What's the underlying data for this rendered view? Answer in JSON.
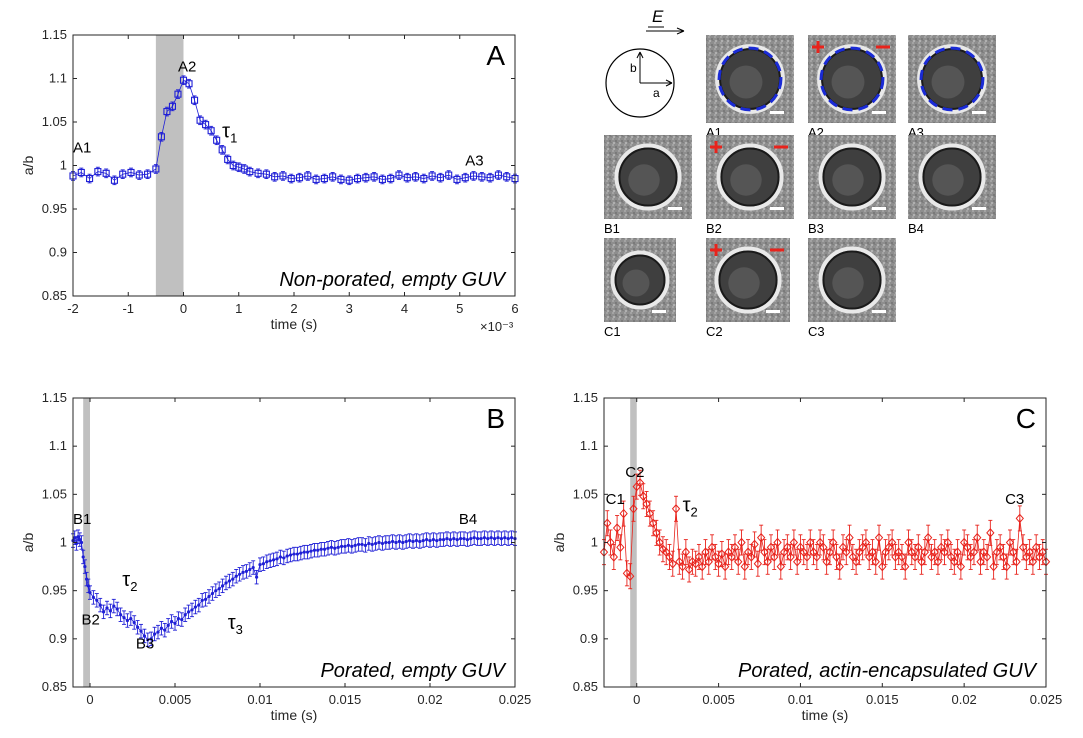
{
  "chart_data": [
    {
      "panel": "A",
      "type": "scatter",
      "caption": "Non-porated, empty GUV",
      "xlabel": "time (s)",
      "x_exponent_label": "×10⁻³",
      "ylabel": "a/b",
      "xlim": [
        -2,
        6
      ],
      "ylim": [
        0.85,
        1.15
      ],
      "xticks": [
        -2,
        -1,
        0,
        1,
        2,
        3,
        4,
        5,
        6
      ],
      "xtick_labels": [
        "-2",
        "-1",
        "0",
        "1",
        "2",
        "3",
        "4",
        "5",
        "6"
      ],
      "yticks": [
        0.85,
        0.9,
        0.95,
        1,
        1.05,
        1.1,
        1.15
      ],
      "ytick_labels": [
        "0.85",
        "0.9",
        "0.95",
        "1",
        "1.05",
        "1.1",
        "1.15"
      ],
      "shaded_region": [
        -0.5,
        0
      ],
      "color": "#1f1fd6",
      "marker": "square",
      "error": 0.005,
      "x": [
        -2.0,
        -1.85,
        -1.7,
        -1.55,
        -1.4,
        -1.25,
        -1.1,
        -0.95,
        -0.8,
        -0.65,
        -0.5,
        -0.4,
        -0.3,
        -0.2,
        -0.1,
        0.0,
        0.1,
        0.2,
        0.3,
        0.4,
        0.5,
        0.6,
        0.7,
        0.8,
        0.9,
        1.0,
        1.1,
        1.2,
        1.35,
        1.5,
        1.65,
        1.8,
        1.95,
        2.1,
        2.25,
        2.4,
        2.55,
        2.7,
        2.85,
        3.0,
        3.15,
        3.3,
        3.45,
        3.6,
        3.75,
        3.9,
        4.05,
        4.2,
        4.35,
        4.5,
        4.65,
        4.8,
        4.95,
        5.1,
        5.25,
        5.4,
        5.55,
        5.7,
        5.85,
        6.0
      ],
      "y": [
        0.988,
        0.992,
        0.985,
        0.993,
        0.991,
        0.983,
        0.99,
        0.992,
        0.989,
        0.99,
        0.996,
        1.033,
        1.062,
        1.068,
        1.082,
        1.098,
        1.094,
        1.075,
        1.052,
        1.047,
        1.04,
        1.029,
        1.018,
        1.007,
        1.0,
        0.998,
        0.996,
        0.993,
        0.991,
        0.99,
        0.987,
        0.988,
        0.985,
        0.986,
        0.988,
        0.984,
        0.985,
        0.987,
        0.984,
        0.983,
        0.985,
        0.986,
        0.987,
        0.984,
        0.985,
        0.989,
        0.986,
        0.987,
        0.985,
        0.988,
        0.986,
        0.989,
        0.984,
        0.986,
        0.988,
        0.987,
        0.986,
        0.989,
        0.987,
        0.985
      ],
      "annotations": [
        {
          "text": "A1",
          "x": -2.0,
          "y": 1.015
        },
        {
          "text": "A2",
          "x": -0.1,
          "y": 1.108
        },
        {
          "text": "A3",
          "x": 5.1,
          "y": 1.0
        }
      ],
      "tau_annotations": [
        {
          "symbol": "τ",
          "subscript": "1",
          "x": 0.7,
          "y": 1.032
        }
      ]
    },
    {
      "panel": "B",
      "type": "scatter",
      "caption": "Porated, empty GUV",
      "xlabel": "time (s)",
      "ylabel": "a/b",
      "xlim": [
        -0.001,
        0.025
      ],
      "ylim": [
        0.85,
        1.15
      ],
      "xticks": [
        0,
        0.005,
        0.01,
        0.015,
        0.02,
        0.025
      ],
      "xtick_labels": [
        "0",
        "0.005",
        "0.01",
        "0.015",
        "0.02",
        "0.025"
      ],
      "yticks": [
        0.85,
        0.9,
        0.95,
        1,
        1.05,
        1.1,
        1.15
      ],
      "ytick_labels": [
        "0.85",
        "0.9",
        "0.95",
        "1",
        "1.05",
        "1.1",
        "1.15"
      ],
      "shaded_region": [
        -0.0004,
        0
      ],
      "color": "#1f1fd6",
      "marker": "dot",
      "error": 0.007,
      "x": [
        -0.001,
        -0.0009,
        -0.0008,
        -0.0007,
        -0.0006,
        -0.0005,
        -0.0004,
        -0.0003,
        -0.0002,
        -0.0001,
        0.0,
        0.0002,
        0.0004,
        0.0006,
        0.0008,
        0.001,
        0.0012,
        0.0014,
        0.0016,
        0.0018,
        0.002,
        0.0022,
        0.0024,
        0.0026,
        0.0028,
        0.003,
        0.0032,
        0.0034,
        0.0036,
        0.0038,
        0.004,
        0.0042,
        0.0044,
        0.0046,
        0.0048,
        0.005,
        0.0052,
        0.0054,
        0.0056,
        0.0058,
        0.006,
        0.0062,
        0.0064,
        0.0066,
        0.0068,
        0.007,
        0.0072,
        0.0074,
        0.0076,
        0.0078,
        0.008,
        0.0082,
        0.0084,
        0.0086,
        0.0088,
        0.009,
        0.0092,
        0.0094,
        0.0096,
        0.0098,
        0.01,
        0.0102,
        0.0104,
        0.0106,
        0.0108,
        0.011,
        0.0112,
        0.0114,
        0.0116,
        0.0118,
        0.012,
        0.0122,
        0.0124,
        0.0126,
        0.0128,
        0.013,
        0.0132,
        0.0134,
        0.0136,
        0.0138,
        0.014,
        0.0142,
        0.0144,
        0.0146,
        0.0148,
        0.015,
        0.0152,
        0.0154,
        0.0156,
        0.0158,
        0.016,
        0.0162,
        0.0164,
        0.0166,
        0.0168,
        0.017,
        0.0172,
        0.0174,
        0.0176,
        0.0178,
        0.018,
        0.0182,
        0.0184,
        0.0186,
        0.0188,
        0.019,
        0.0192,
        0.0194,
        0.0196,
        0.0198,
        0.02,
        0.0202,
        0.0204,
        0.0206,
        0.0208,
        0.021,
        0.0212,
        0.0214,
        0.0216,
        0.0218,
        0.022,
        0.0222,
        0.0224,
        0.0226,
        0.0228,
        0.023,
        0.0232,
        0.0234,
        0.0236,
        0.0238,
        0.024,
        0.0242,
        0.0244,
        0.0246,
        0.0248,
        0.025
      ],
      "y": [
        1.002,
        1.005,
        0.999,
        1.006,
        1.003,
        1.0,
        0.985,
        0.975,
        0.962,
        0.955,
        0.948,
        0.943,
        0.94,
        0.935,
        0.928,
        0.932,
        0.929,
        0.934,
        0.931,
        0.925,
        0.922,
        0.919,
        0.921,
        0.917,
        0.912,
        0.908,
        0.903,
        0.899,
        0.9,
        0.905,
        0.907,
        0.911,
        0.909,
        0.914,
        0.918,
        0.916,
        0.921,
        0.92,
        0.925,
        0.928,
        0.93,
        0.933,
        0.935,
        0.94,
        0.941,
        0.944,
        0.947,
        0.95,
        0.952,
        0.955,
        0.958,
        0.96,
        0.962,
        0.965,
        0.967,
        0.969,
        0.97,
        0.972,
        0.974,
        0.964,
        0.977,
        0.978,
        0.98,
        0.981,
        0.982,
        0.983,
        0.985,
        0.984,
        0.986,
        0.987,
        0.988,
        0.988,
        0.989,
        0.99,
        0.99,
        0.991,
        0.992,
        0.992,
        0.993,
        0.993,
        0.994,
        0.995,
        0.994,
        0.995,
        0.996,
        0.996,
        0.997,
        0.996,
        0.997,
        0.998,
        0.998,
        0.997,
        0.999,
        0.998,
        0.999,
        1.0,
        0.999,
        1.0,
        1.0,
        1.001,
        1.0,
        1.001,
        1.0,
        1.001,
        1.002,
        1.001,
        1.002,
        1.001,
        1.002,
        1.003,
        1.002,
        1.003,
        1.002,
        1.003,
        1.003,
        1.004,
        1.003,
        1.004,
        1.003,
        1.004,
        1.004,
        1.003,
        1.004,
        1.005,
        1.004,
        1.004,
        1.005,
        1.004,
        1.005,
        1.004,
        1.005,
        1.004,
        1.005,
        1.004,
        1.005,
        1.004
      ],
      "annotations": [
        {
          "text": "B1",
          "x": -0.001,
          "y": 1.019
        },
        {
          "text": "B2",
          "x": -0.0005,
          "y": 0.915
        },
        {
          "text": "B3",
          "x": 0.0027,
          "y": 0.89
        },
        {
          "text": "B4",
          "x": 0.0217,
          "y": 1.019
        }
      ],
      "tau_annotations": [
        {
          "symbol": "τ",
          "subscript": "2",
          "x": 0.0019,
          "y": 0.955
        },
        {
          "symbol": "τ",
          "subscript": "3",
          "x": 0.0081,
          "y": 0.91
        }
      ]
    },
    {
      "panel": "C",
      "type": "scatter",
      "caption": "Porated, actin-encapsulated GUV",
      "xlabel": "time (s)",
      "ylabel": "a/b",
      "xlim": [
        -0.002,
        0.025
      ],
      "ylim": [
        0.85,
        1.15
      ],
      "xticks": [
        0,
        0.005,
        0.01,
        0.015,
        0.02,
        0.025
      ],
      "xtick_labels": [
        "0",
        "0.005",
        "0.01",
        "0.015",
        "0.02",
        "0.025"
      ],
      "yticks": [
        0.85,
        0.9,
        0.95,
        1,
        1.05,
        1.1,
        1.15
      ],
      "ytick_labels": [
        "0.85",
        "0.9",
        "0.95",
        "1",
        "1.05",
        "1.1",
        "1.15"
      ],
      "shaded_region": [
        -0.0004,
        0
      ],
      "color": "#e8231c",
      "marker": "diamond",
      "error": 0.013,
      "x": [
        -0.002,
        -0.0018,
        -0.0016,
        -0.0014,
        -0.0012,
        -0.001,
        -0.0008,
        -0.0006,
        -0.0004,
        -0.0002,
        0.0,
        0.0002,
        0.0004,
        0.0006,
        0.0008,
        0.001,
        0.0012,
        0.0014,
        0.0016,
        0.0018,
        0.002,
        0.0022,
        0.0024,
        0.0026,
        0.0028,
        0.003,
        0.0032,
        0.0034,
        0.0036,
        0.0038,
        0.004,
        0.0042,
        0.0044,
        0.0046,
        0.0048,
        0.005,
        0.0052,
        0.0054,
        0.0056,
        0.0058,
        0.006,
        0.0062,
        0.0064,
        0.0066,
        0.0068,
        0.007,
        0.0072,
        0.0074,
        0.0076,
        0.0078,
        0.008,
        0.0082,
        0.0084,
        0.0086,
        0.0088,
        0.009,
        0.0092,
        0.0094,
        0.0096,
        0.0098,
        0.01,
        0.0102,
        0.0104,
        0.0106,
        0.0108,
        0.011,
        0.0112,
        0.0114,
        0.0116,
        0.0118,
        0.012,
        0.0122,
        0.0124,
        0.0126,
        0.0128,
        0.013,
        0.0132,
        0.0134,
        0.0136,
        0.0138,
        0.014,
        0.0142,
        0.0144,
        0.0146,
        0.0148,
        0.015,
        0.0152,
        0.0154,
        0.0156,
        0.0158,
        0.016,
        0.0162,
        0.0164,
        0.0166,
        0.0168,
        0.017,
        0.0172,
        0.0174,
        0.0176,
        0.0178,
        0.018,
        0.0182,
        0.0184,
        0.0186,
        0.0188,
        0.019,
        0.0192,
        0.0194,
        0.0196,
        0.0198,
        0.02,
        0.0202,
        0.0204,
        0.0206,
        0.0208,
        0.021,
        0.0212,
        0.0214,
        0.0216,
        0.0218,
        0.022,
        0.0222,
        0.0224,
        0.0226,
        0.0228,
        0.023,
        0.0232,
        0.0234,
        0.0236,
        0.0238,
        0.024,
        0.0242,
        0.0244,
        0.0246,
        0.0248,
        0.025
      ],
      "y": [
        0.99,
        1.02,
        1.0,
        0.985,
        1.015,
        0.995,
        1.03,
        0.968,
        0.965,
        1.035,
        1.058,
        1.062,
        1.048,
        1.04,
        1.03,
        1.02,
        1.01,
        1.0,
        0.993,
        0.99,
        0.985,
        0.978,
        1.035,
        0.98,
        0.975,
        0.99,
        0.972,
        0.98,
        0.978,
        0.985,
        0.975,
        0.99,
        0.98,
        0.995,
        0.985,
        0.978,
        0.988,
        0.975,
        0.99,
        0.985,
        0.995,
        0.98,
        1.0,
        0.975,
        0.99,
        0.985,
        0.998,
        0.978,
        1.005,
        0.99,
        0.98,
        0.995,
        0.985,
        1.0,
        0.975,
        0.99,
        0.995,
        0.985,
        1.0,
        0.98,
        0.995,
        0.99,
        0.985,
        1.0,
        0.99,
        0.985,
        1.0,
        0.995,
        0.98,
        0.99,
        1.0,
        0.985,
        0.975,
        0.995,
        0.99,
        1.005,
        0.985,
        0.98,
        0.99,
        0.995,
        1.0,
        0.985,
        0.99,
        0.98,
        1.005,
        0.975,
        0.99,
        0.995,
        1.0,
        0.985,
        0.99,
        0.985,
        0.975,
        1.0,
        0.99,
        0.985,
        0.995,
        0.98,
        0.99,
        1.005,
        0.985,
        0.99,
        0.98,
        0.995,
        0.99,
        1.0,
        0.985,
        0.98,
        0.99,
        0.975,
        1.0,
        0.995,
        0.985,
        0.99,
        1.005,
        0.98,
        0.99,
        0.985,
        1.01,
        0.975,
        0.99,
        0.995,
        0.985,
        0.975,
        1.0,
        0.99,
        0.98,
        1.025,
        0.995,
        0.985,
        0.99,
        0.98,
        0.995,
        0.985,
        0.99,
        0.98
      ],
      "annotations": [
        {
          "text": "C1",
          "x": -0.0019,
          "y": 1.04
        },
        {
          "text": "C2",
          "x": -0.0007,
          "y": 1.068
        },
        {
          "text": "C3",
          "x": 0.0225,
          "y": 1.04
        }
      ],
      "tau_annotations": [
        {
          "symbol": "τ",
          "subscript": "2",
          "x": 0.0028,
          "y": 1.032
        }
      ]
    }
  ],
  "diagram": {
    "field_label": "E",
    "axis_a": "a",
    "axis_b": "b"
  },
  "micrographs": [
    {
      "label": "A1",
      "electrodes": false,
      "blue_outline": true
    },
    {
      "label": "A2",
      "electrodes": true,
      "blue_outline": true
    },
    {
      "label": "A3",
      "electrodes": false,
      "blue_outline": true
    },
    {
      "label": "B1",
      "electrodes": false,
      "blue_outline": false
    },
    {
      "label": "B2",
      "electrodes": true,
      "blue_outline": false
    },
    {
      "label": "B3",
      "electrodes": false,
      "blue_outline": false
    },
    {
      "label": "B4",
      "electrodes": false,
      "blue_outline": false
    },
    {
      "label": "C1",
      "electrodes": false,
      "blue_outline": false
    },
    {
      "label": "C2",
      "electrodes": true,
      "blue_outline": false
    },
    {
      "label": "C3",
      "electrodes": false,
      "blue_outline": false
    }
  ]
}
